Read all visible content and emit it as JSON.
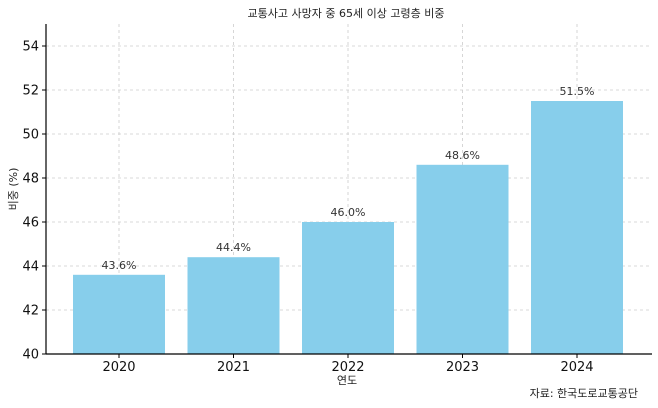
{
  "chart_data": {
    "type": "bar",
    "title": "교통사고 사망자 중 65세 이상 고령층 비중",
    "xlabel": "연도",
    "ylabel": "비중 (%)",
    "categories": [
      "2020",
      "2021",
      "2022",
      "2023",
      "2024"
    ],
    "values": [
      43.6,
      44.4,
      46.0,
      48.6,
      51.5
    ],
    "data_labels": [
      "43.6%",
      "44.4%",
      "46.0%",
      "48.6%",
      "51.5%"
    ],
    "ylim": [
      40,
      55
    ],
    "yticks": [
      "40",
      "42",
      "44",
      "46",
      "48",
      "50",
      "52",
      "54"
    ],
    "grid": true,
    "bar_color": "#87CEEB",
    "source": "자료: 한국도로교통공단"
  }
}
